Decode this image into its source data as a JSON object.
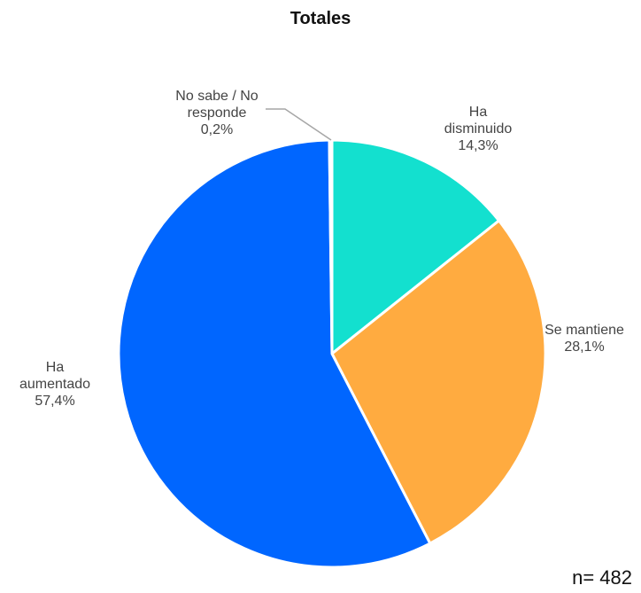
{
  "chart_data": {
    "type": "pie",
    "title": "Totales",
    "categories": [
      "Ha disminuido",
      "Se mantiene",
      "Ha aumentado",
      "No sabe / No responde"
    ],
    "values": [
      14.3,
      28.1,
      57.4,
      0.2
    ],
    "value_labels": [
      "14,3%",
      "28,1%",
      "57,4%",
      "0,2%"
    ],
    "colors": [
      "#13e0cf",
      "#ffab40",
      "#0066ff",
      "#a6a6a6"
    ],
    "annotation": "n= 482"
  }
}
